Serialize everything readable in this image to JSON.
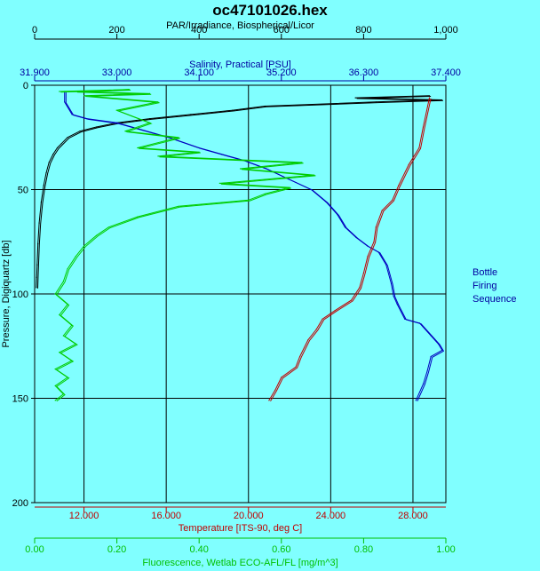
{
  "chart_data": {
    "type": "line",
    "title": "oc47101026.hex",
    "ylabel": "Pressure, Digiquartz [db]",
    "ylim": [
      0,
      200
    ],
    "y_inverted": true,
    "y_ticks": [
      "0",
      "50",
      "100",
      "150",
      "200"
    ],
    "grid": true,
    "legend_text": [
      "Bottle",
      "Firing",
      "Sequence"
    ],
    "axes": [
      {
        "id": "par",
        "label": "PAR/Irradiance, Biospherical/Licor",
        "range": [
          0,
          1000
        ],
        "position": "top-outer",
        "color": "#000000",
        "ticks": [
          "0",
          "200",
          "400",
          "600",
          "800",
          "1,000"
        ]
      },
      {
        "id": "sal",
        "label": "Salinity, Practical [PSU]",
        "range": [
          31.9,
          37.4
        ],
        "position": "top-inner",
        "color": "#0000a0",
        "ticks": [
          "31.900",
          "33.000",
          "34.100",
          "35.200",
          "36.300",
          "37.400"
        ]
      },
      {
        "id": "temp",
        "label": "Temperature [ITS-90, deg C]",
        "range": [
          9.6,
          29.6
        ],
        "position": "bottom-inner",
        "color": "#c00000",
        "ticks": [
          "12.000",
          "16.000",
          "20.000",
          "24.000",
          "28.000"
        ],
        "tick_values": [
          12,
          16,
          20,
          24,
          28
        ]
      },
      {
        "id": "fluor",
        "label": "Fluorescence, Wetlab ECO-AFL/FL [mg/m^3]",
        "range": [
          0,
          1
        ],
        "position": "bottom-outer",
        "color": "#00c000",
        "ticks": [
          "0.00",
          "0.20",
          "0.40",
          "0.60",
          "0.80",
          "1.00"
        ]
      }
    ],
    "series": [
      {
        "axis": "par",
        "color": "#000000",
        "points": [
          [
            960,
            5
          ],
          [
            780,
            6
          ],
          [
            990,
            7
          ],
          [
            830,
            8
          ],
          [
            560,
            10
          ],
          [
            480,
            12
          ],
          [
            380,
            14
          ],
          [
            280,
            16
          ],
          [
            200,
            18
          ],
          [
            150,
            20
          ],
          [
            110,
            22
          ],
          [
            80,
            25
          ],
          [
            65,
            28
          ],
          [
            55,
            30
          ],
          [
            45,
            33
          ],
          [
            35,
            37
          ],
          [
            28,
            42
          ],
          [
            22,
            48
          ],
          [
            16,
            56
          ],
          [
            11,
            66
          ],
          [
            8,
            76
          ],
          [
            6,
            86
          ],
          [
            5,
            92
          ],
          [
            4,
            97
          ]
        ]
      },
      {
        "axis": "sal",
        "color": "#0000c0",
        "points": [
          [
            32.3,
            3
          ],
          [
            32.3,
            8
          ],
          [
            32.4,
            14
          ],
          [
            32.6,
            16
          ],
          [
            33.0,
            18
          ],
          [
            33.3,
            21
          ],
          [
            33.7,
            25
          ],
          [
            34.1,
            30
          ],
          [
            34.4,
            33
          ],
          [
            34.7,
            36
          ],
          [
            35.0,
            40
          ],
          [
            35.3,
            45
          ],
          [
            35.6,
            50
          ],
          [
            35.8,
            56
          ],
          [
            35.95,
            62
          ],
          [
            36.05,
            68
          ],
          [
            36.2,
            73
          ],
          [
            36.35,
            77
          ],
          [
            36.5,
            80
          ],
          [
            36.6,
            86
          ],
          [
            36.67,
            95
          ],
          [
            36.7,
            101
          ],
          [
            36.75,
            105
          ],
          [
            36.85,
            112
          ],
          [
            37.05,
            114
          ],
          [
            37.2,
            120
          ],
          [
            37.3,
            124
          ],
          [
            37.35,
            127
          ],
          [
            37.2,
            130
          ],
          [
            37.15,
            137
          ],
          [
            37.1,
            143
          ],
          [
            37.0,
            151
          ]
        ]
      },
      {
        "axis": "temp",
        "color": "#c00000",
        "points": [
          [
            28.8,
            6
          ],
          [
            28.5,
            20
          ],
          [
            28.3,
            30
          ],
          [
            27.8,
            38
          ],
          [
            27.3,
            48
          ],
          [
            27.0,
            55
          ],
          [
            26.5,
            60
          ],
          [
            26.2,
            68
          ],
          [
            26.1,
            75
          ],
          [
            25.8,
            82
          ],
          [
            25.6,
            90
          ],
          [
            25.4,
            97
          ],
          [
            25.0,
            103
          ],
          [
            24.2,
            108
          ],
          [
            23.6,
            112
          ],
          [
            23.3,
            117
          ],
          [
            22.9,
            122
          ],
          [
            22.5,
            130
          ],
          [
            22.3,
            135
          ],
          [
            21.6,
            140
          ],
          [
            21.3,
            146
          ],
          [
            21.0,
            151
          ]
        ]
      },
      {
        "axis": "fluor",
        "color": "#00cc00",
        "points": [
          [
            0.06,
            3
          ],
          [
            0.23,
            2
          ],
          [
            0.1,
            3
          ],
          [
            0.28,
            4
          ],
          [
            0.12,
            5
          ],
          [
            0.3,
            8
          ],
          [
            0.2,
            12
          ],
          [
            0.28,
            18
          ],
          [
            0.22,
            22
          ],
          [
            0.35,
            25
          ],
          [
            0.25,
            30
          ],
          [
            0.4,
            32
          ],
          [
            0.3,
            34
          ],
          [
            0.65,
            37
          ],
          [
            0.5,
            40
          ],
          [
            0.68,
            43
          ],
          [
            0.45,
            47
          ],
          [
            0.62,
            49
          ],
          [
            0.56,
            52
          ],
          [
            0.52,
            55
          ],
          [
            0.35,
            58
          ],
          [
            0.25,
            63
          ],
          [
            0.18,
            68
          ],
          [
            0.15,
            72
          ],
          [
            0.12,
            77
          ],
          [
            0.1,
            82
          ],
          [
            0.08,
            88
          ],
          [
            0.07,
            94
          ],
          [
            0.05,
            100
          ],
          [
            0.08,
            105
          ],
          [
            0.06,
            110
          ],
          [
            0.09,
            115
          ],
          [
            0.07,
            120
          ],
          [
            0.1,
            124
          ],
          [
            0.06,
            128
          ],
          [
            0.09,
            132
          ],
          [
            0.05,
            136
          ],
          [
            0.08,
            140
          ],
          [
            0.05,
            144
          ],
          [
            0.07,
            148
          ],
          [
            0.05,
            151
          ]
        ]
      }
    ]
  }
}
